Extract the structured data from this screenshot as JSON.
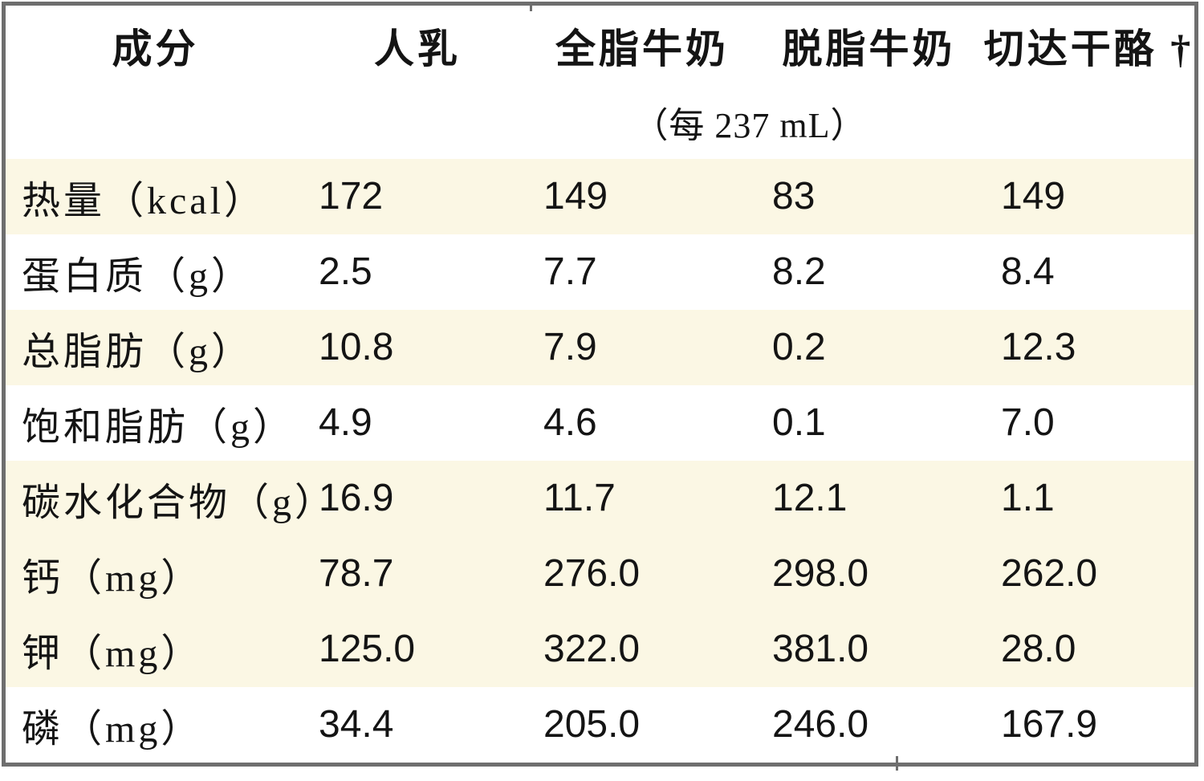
{
  "table": {
    "columns": [
      "成分",
      "人乳",
      "全脂牛奶",
      "脱脂牛奶",
      "切达干酪 †"
    ],
    "subheader": "（每 237 mL）",
    "rows": [
      {
        "label": "热量（kcal）",
        "values": [
          "172",
          "149",
          "83",
          "149"
        ]
      },
      {
        "label": "蛋白质（g）",
        "values": [
          "2.5",
          "7.7",
          "8.2",
          "8.4"
        ]
      },
      {
        "label": "总脂肪（g）",
        "values": [
          "10.8",
          "7.9",
          "0.2",
          "12.3"
        ]
      },
      {
        "label": "饱和脂肪（g）",
        "values": [
          "4.9",
          "4.6",
          "0.1",
          "7.0"
        ]
      },
      {
        "label": "碳水化合物（g）",
        "values": [
          "16.9",
          "11.7",
          "12.1",
          "1.1"
        ]
      },
      {
        "label": "钙（mg）",
        "values": [
          "78.7",
          "276.0",
          "298.0",
          "262.0"
        ]
      },
      {
        "label": "钾（mg）",
        "values": [
          "125.0",
          "322.0",
          "381.0",
          "28.0"
        ]
      },
      {
        "label": "磷（mg）",
        "values": [
          "34.4",
          "205.0",
          "246.0",
          "167.9"
        ]
      }
    ],
    "colors": {
      "row_highlight": "#fbf7e4",
      "border": "#6e6e6e",
      "text": "#141414"
    }
  }
}
